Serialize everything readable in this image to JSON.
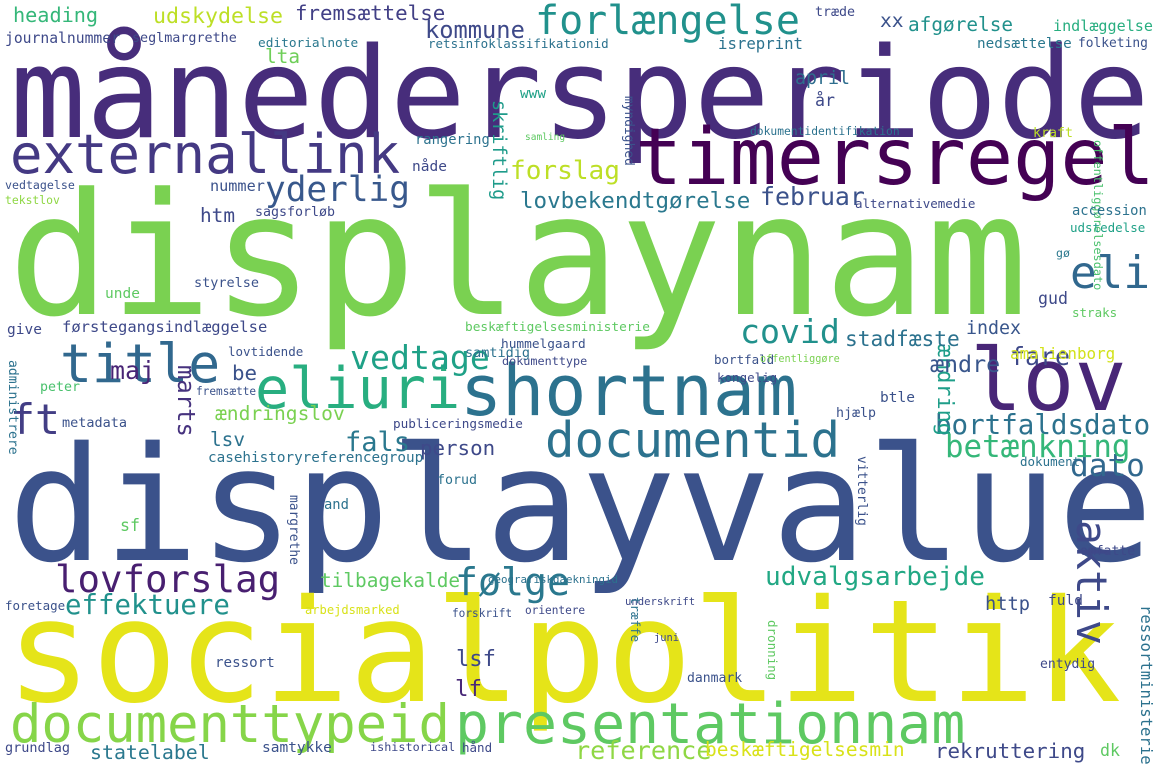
{
  "type": "word-cloud",
  "words": [
    {
      "text": "månedersperiode",
      "color": "#472d7b"
    },
    {
      "text": "displaynam",
      "color": "#7ad151"
    },
    {
      "text": "displayvalue",
      "color": "#3b528b"
    },
    {
      "text": "socialpolitik",
      "color": "#e5e419"
    },
    {
      "text": "timersregel",
      "color": "#440154"
    },
    {
      "text": "externallink",
      "color": "#443983"
    },
    {
      "text": "forlængelse",
      "color": "#21918c"
    },
    {
      "text": "shortnam",
      "color": "#2c728e"
    },
    {
      "text": "eliuri",
      "color": "#28ae80"
    },
    {
      "text": "lov",
      "color": "#482677"
    },
    {
      "text": "title",
      "color": "#31688e"
    },
    {
      "text": "documentid",
      "color": "#2c728e"
    },
    {
      "text": "documenttypeid",
      "color": "#86d549"
    },
    {
      "text": "presentationnam",
      "color": "#5ec962"
    },
    {
      "text": "aktiv",
      "color": "#3e4989"
    },
    {
      "text": "eli",
      "color": "#31688e"
    },
    {
      "text": "yderlig",
      "color": "#38588c"
    },
    {
      "text": "covid",
      "color": "#21918c"
    },
    {
      "text": "lovforslag",
      "color": "#481f70"
    },
    {
      "text": "følge",
      "color": "#2a788e"
    },
    {
      "text": "udvalgsarbejde",
      "color": "#22a884"
    },
    {
      "text": "forslag",
      "color": "#bddf26"
    },
    {
      "text": "ft",
      "color": "#433e85"
    },
    {
      "text": "marts",
      "color": "#46327e"
    },
    {
      "text": "fare",
      "color": "#3e4989"
    },
    {
      "text": "bortfaldsdato",
      "color": "#2c728e"
    },
    {
      "text": "dato",
      "color": "#31688e"
    },
    {
      "text": "vedtage",
      "color": "#1fa187"
    },
    {
      "text": "ændringslov",
      "color": "#7ad151"
    },
    {
      "text": "fremsættelse",
      "color": "#424086"
    },
    {
      "text": "kommune",
      "color": "#3e4989"
    },
    {
      "text": "afgørelse",
      "color": "#21918c"
    },
    {
      "text": "udskydelse",
      "color": "#bddf26"
    },
    {
      "text": "heading",
      "color": "#35b779"
    },
    {
      "text": "skriftlig",
      "color": "#1e9b8a"
    },
    {
      "text": "lovbekendtgørelse",
      "color": "#2a788e"
    },
    {
      "text": "februar",
      "color": "#3b528b"
    },
    {
      "text": "effektuere",
      "color": "#21918c"
    },
    {
      "text": "ændring",
      "color": "#1f9e89"
    },
    {
      "text": "betænkning",
      "color": "#35b779"
    },
    {
      "text": "maj",
      "color": "#482475"
    },
    {
      "text": "fals",
      "color": "#2a788e"
    },
    {
      "text": "ændre",
      "color": "#39568c"
    },
    {
      "text": "amalienborg",
      "color": "#d2e21b"
    },
    {
      "text": "stadfæste",
      "color": "#2c728e"
    },
    {
      "text": "april",
      "color": "#2e6e8e"
    },
    {
      "text": "lta",
      "color": "#6ece58"
    },
    {
      "text": "htm",
      "color": "#3e4989"
    },
    {
      "text": "index",
      "color": "#39568c"
    },
    {
      "text": "tilbagekalde",
      "color": "#5ec962"
    },
    {
      "text": "rekruttering",
      "color": "#3e4989"
    },
    {
      "text": "statelabel",
      "color": "#2a788e"
    },
    {
      "text": "reference",
      "color": "#8fd744"
    },
    {
      "text": "beskæftigelsesmin",
      "color": "#d8e219"
    },
    {
      "text": "lsv",
      "color": "#2c728e"
    },
    {
      "text": "lsf",
      "color": "#3e4989"
    },
    {
      "text": "lf",
      "color": "#482878"
    },
    {
      "text": "http",
      "color": "#3b528b"
    },
    {
      "text": "person",
      "color": "#3e4989"
    },
    {
      "text": "btle",
      "color": "#3b528b"
    },
    {
      "text": "be",
      "color": "#3b528b"
    },
    {
      "text": "xx",
      "color": "#3b528b"
    },
    {
      "text": "år",
      "color": "#3e4989"
    },
    {
      "text": "journalnummer",
      "color": "#3e4989"
    },
    {
      "text": "seglmargrethe",
      "color": "#3e4989"
    },
    {
      "text": "editorialnote",
      "color": "#2a788e"
    },
    {
      "text": "retsinfoklassifikationid",
      "color": "#2c728e"
    },
    {
      "text": "isreprint",
      "color": "#2c728e"
    },
    {
      "text": "nedsættelse",
      "color": "#2a788e"
    },
    {
      "text": "folketing",
      "color": "#3b528b"
    },
    {
      "text": "indlæggelse",
      "color": "#28ae80"
    },
    {
      "text": "træde",
      "color": "#3e4989"
    },
    {
      "text": "www",
      "color": "#1fa187"
    },
    {
      "text": "myndighed",
      "color": "#3b528b"
    },
    {
      "text": "rangering",
      "color": "#2c728e"
    },
    {
      "text": "samling",
      "color": "#5ec962"
    },
    {
      "text": "dokumentidentifikation",
      "color": "#2c728e"
    },
    {
      "text": "kraft",
      "color": "#bddf26"
    },
    {
      "text": "offentliggørelsesdato",
      "color": "#4ac16d"
    },
    {
      "text": "nåde",
      "color": "#3e4989"
    },
    {
      "text": "nummer",
      "color": "#3b528b"
    },
    {
      "text": "vedtagelse",
      "color": "#3b528b"
    },
    {
      "text": "tekstlov",
      "color": "#8fd744"
    },
    {
      "text": "sagsforløb",
      "color": "#3e4989"
    },
    {
      "text": "alternativemedie",
      "color": "#3e4989"
    },
    {
      "text": "accession",
      "color": "#2c728e"
    },
    {
      "text": "udstedelse",
      "color": "#1fa187"
    },
    {
      "text": "gø",
      "color": "#2a788e"
    },
    {
      "text": "styrelse",
      "color": "#3b528b"
    },
    {
      "text": "unde",
      "color": "#5ec962"
    },
    {
      "text": "gud",
      "color": "#3e4989"
    },
    {
      "text": "straks",
      "color": "#5ec962"
    },
    {
      "text": "give",
      "color": "#3e4989"
    },
    {
      "text": "førstegangsindlæggelse",
      "color": "#3e4989"
    },
    {
      "text": "beskæftigelsesministerie",
      "color": "#5ec962"
    },
    {
      "text": "lovtidende",
      "color": "#3b528b"
    },
    {
      "text": "hummelgaard",
      "color": "#3b528b"
    },
    {
      "text": "samtidig",
      "color": "#2c728e"
    },
    {
      "text": "dokumenttype",
      "color": "#3e4989"
    },
    {
      "text": "bortfald",
      "color": "#3b528b"
    },
    {
      "text": "offentliggøre",
      "color": "#7ad151"
    },
    {
      "text": "kongelig",
      "color": "#3e4989"
    },
    {
      "text": "administrere",
      "color": "#2c728e"
    },
    {
      "text": "peter",
      "color": "#4ac16d"
    },
    {
      "text": "fremsætte",
      "color": "#3b528b"
    },
    {
      "text": "metadata",
      "color": "#3b528b"
    },
    {
      "text": "casehistoryreferencegroup",
      "color": "#2c728e"
    },
    {
      "text": "publiceringsmedie",
      "color": "#3e4989"
    },
    {
      "text": "hjælp",
      "color": "#3b528b"
    },
    {
      "text": "vitterlig",
      "color": "#3b528b"
    },
    {
      "text": "dokument",
      "color": "#2c728e"
    },
    {
      "text": "forud",
      "color": "#2c728e"
    },
    {
      "text": "and",
      "color": "#2c728e"
    },
    {
      "text": "sf",
      "color": "#5ec962"
    },
    {
      "text": "margrethe",
      "color": "#3b528b"
    },
    {
      "text": "omfatte",
      "color": "#3e4989"
    },
    {
      "text": "geografiskdaekningid",
      "color": "#2c728e"
    },
    {
      "text": "foretage",
      "color": "#3b528b"
    },
    {
      "text": "arbejdsmarked",
      "color": "#d8e219"
    },
    {
      "text": "forskrift",
      "color": "#3b528b"
    },
    {
      "text": "orientere",
      "color": "#3e4989"
    },
    {
      "text": "underskrift",
      "color": "#3e4989"
    },
    {
      "text": "fuld",
      "color": "#3e4989"
    },
    {
      "text": "træffe",
      "color": "#2c728e"
    },
    {
      "text": "juni",
      "color": "#3e4989"
    },
    {
      "text": "dronning",
      "color": "#5ec962"
    },
    {
      "text": "ressortministerie",
      "color": "#2c728e"
    },
    {
      "text": "ressort",
      "color": "#3b528b"
    },
    {
      "text": "entydig",
      "color": "#3e4989"
    },
    {
      "text": "danmark",
      "color": "#3b528b"
    },
    {
      "text": "grundlag",
      "color": "#3e4989"
    },
    {
      "text": "samtykke",
      "color": "#3b528b"
    },
    {
      "text": "ishistorical",
      "color": "#3e4989"
    },
    {
      "text": "hånd",
      "color": "#3e4989"
    },
    {
      "text": "dk",
      "color": "#5ec962"
    }
  ]
}
